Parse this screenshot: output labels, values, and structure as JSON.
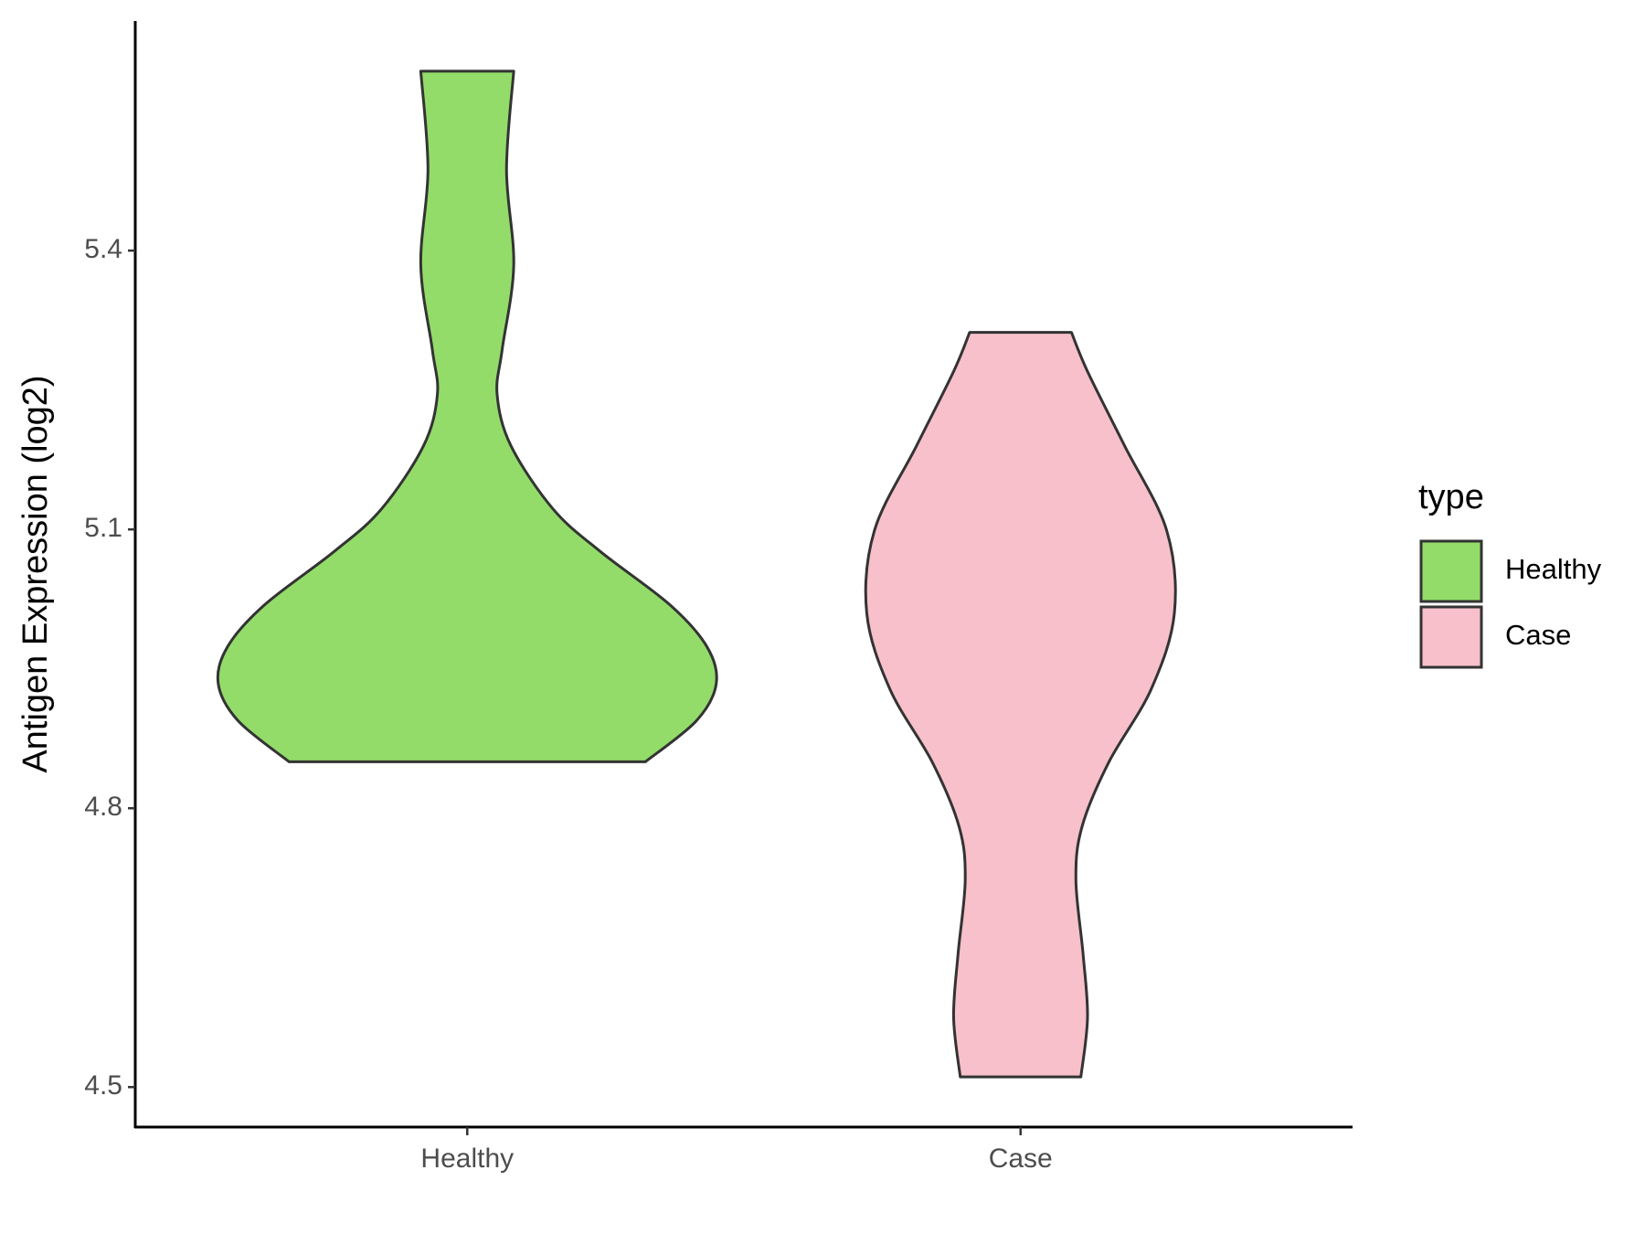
{
  "chart_data": {
    "type": "violin",
    "y_label": "Antigen Expression (log2)",
    "categories": [
      "Healthy",
      "Case"
    ],
    "series": [
      {
        "name": "Healthy",
        "color": "#93dc6a",
        "y": [
          5.593,
          5.487,
          5.384,
          5.293,
          5.245,
          5.19,
          5.122,
          5.076,
          5.019,
          4.974,
          4.934,
          4.894,
          4.85
        ],
        "width": [
          0.084,
          0.071,
          0.084,
          0.063,
          0.054,
          0.079,
          0.155,
          0.241,
          0.366,
          0.433,
          0.45,
          0.414,
          0.322
        ]
      },
      {
        "name": "Case",
        "color": "#f7c0cb",
        "y": [
          5.312,
          5.27,
          5.19,
          5.099,
          5.01,
          4.928,
          4.849,
          4.78,
          4.723,
          4.643,
          4.575,
          4.511
        ],
        "width": [
          0.092,
          0.121,
          0.188,
          0.264,
          0.278,
          0.236,
          0.159,
          0.111,
          0.1,
          0.113,
          0.121,
          0.109
        ]
      }
    ],
    "ylim": [
      4.457,
      5.647
    ],
    "yticks": [
      4.5,
      4.8,
      5.1,
      5.4
    ],
    "legend_title": "type",
    "legend_position": "right"
  }
}
